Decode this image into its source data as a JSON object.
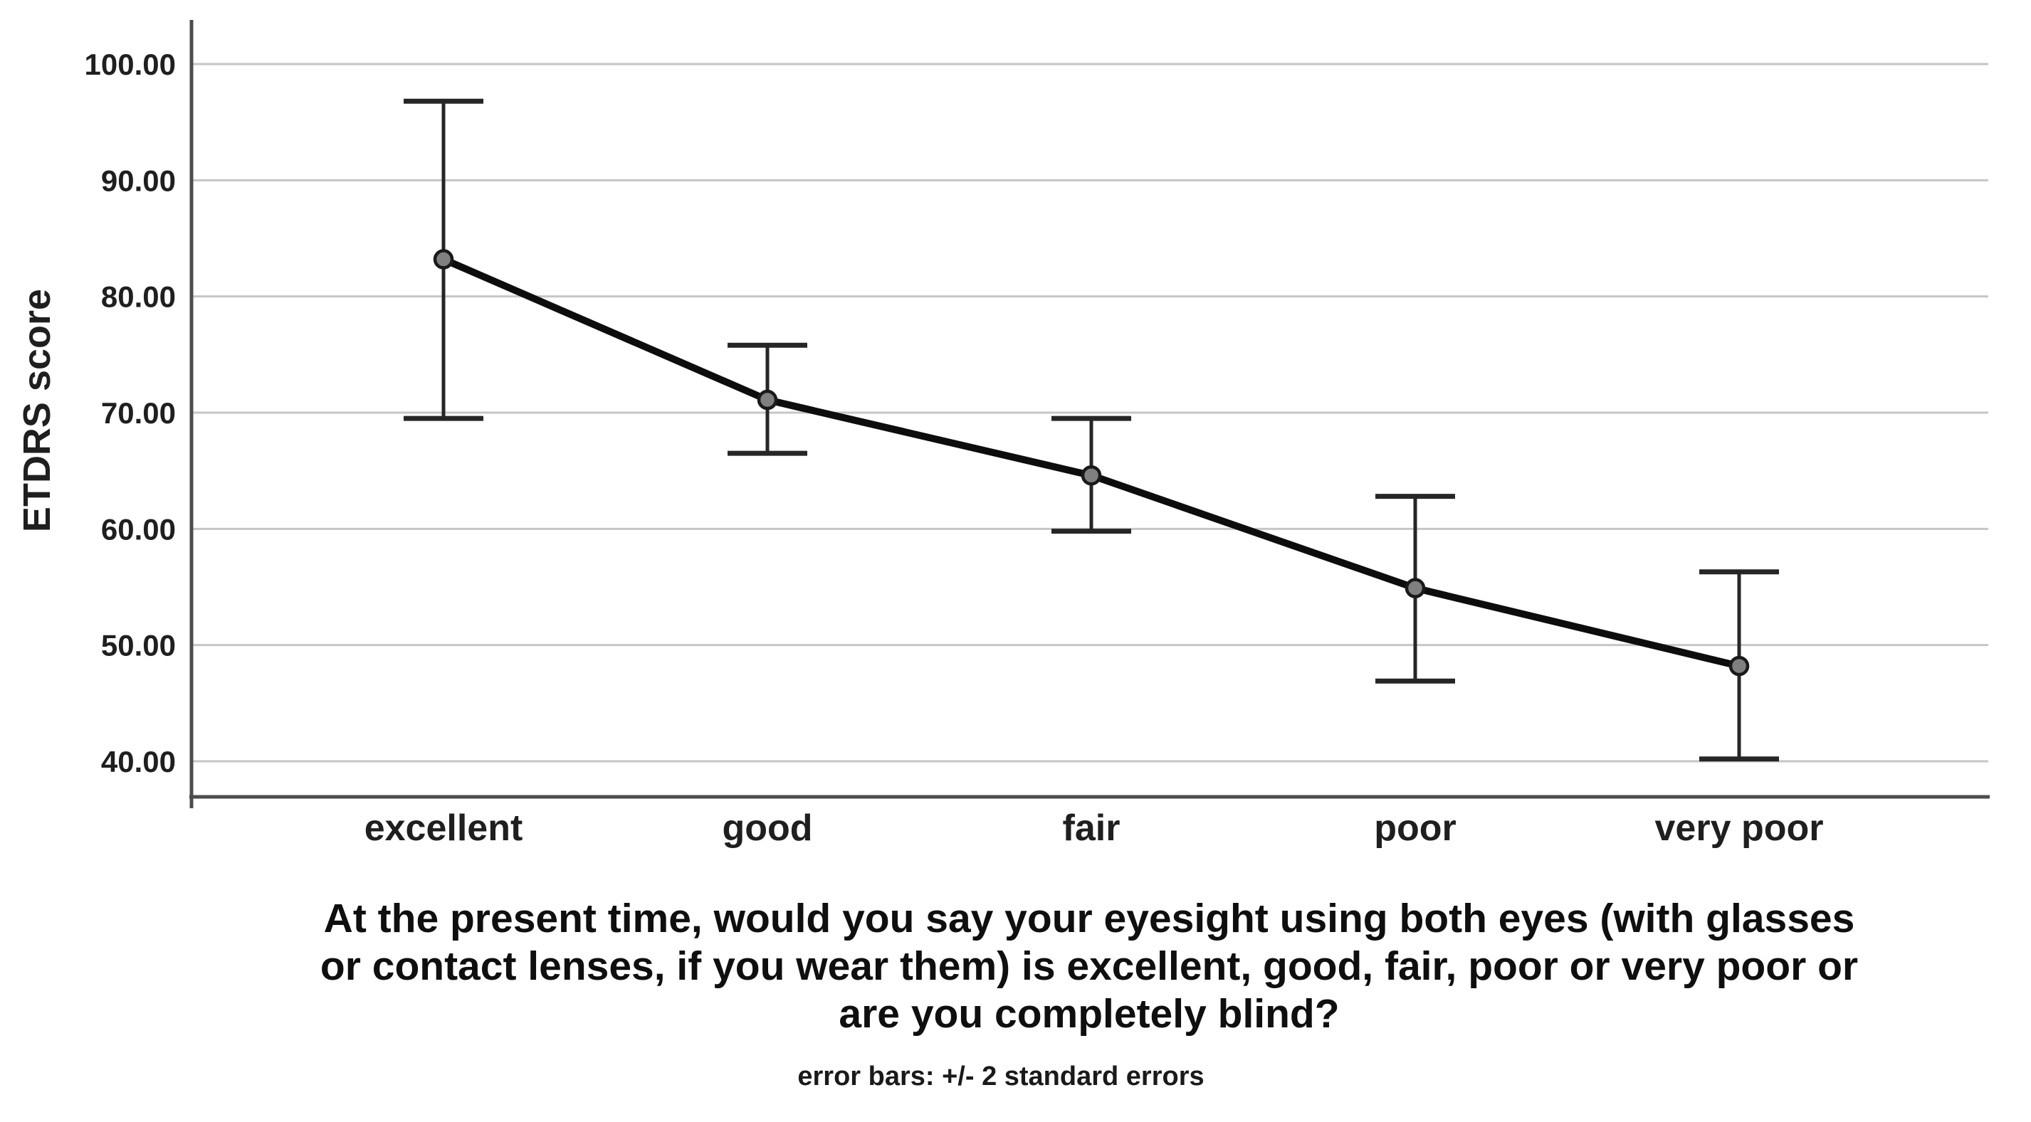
{
  "chart_data": {
    "type": "line",
    "subtype": "error-bar-means-plot",
    "title": "At the present time, would you say your eyesight using both eyes (with glasses or contact lenses, if you wear them) is excellent, good, fair, poor or very poor or are you completely blind?",
    "title_lines": [
      "At the present time, would you say your eyesight using both eyes (with glasses",
      "or contact lenses, if you wear them) is excellent, good, fair, poor or very poor or",
      "are you completely blind?"
    ],
    "footnote": "error bars: +/- 2 standard errors",
    "ylabel": "ETDRS score",
    "xlabel": "",
    "categories": [
      "excellent",
      "good",
      "fair",
      "poor",
      "very poor"
    ],
    "values": [
      83.2,
      71.1,
      64.6,
      54.9,
      48.2
    ],
    "error_upper": [
      96.8,
      75.8,
      69.5,
      62.8,
      56.3
    ],
    "error_lower": [
      69.5,
      66.5,
      59.8,
      46.9,
      40.2
    ],
    "error_bar_definition": "+/- 2 standard errors",
    "y_ticks": [
      {
        "value": 100,
        "label": "100.00"
      },
      {
        "value": 90,
        "label": "90.00"
      },
      {
        "value": 80,
        "label": "80.00"
      },
      {
        "value": 70,
        "label": "70.00"
      },
      {
        "value": 60,
        "label": "60.00"
      },
      {
        "value": 50,
        "label": "50.00"
      },
      {
        "value": 40,
        "label": "40.00"
      }
    ],
    "ylim": [
      36.5,
      103.8
    ],
    "grid": "horizontal",
    "legend": "none",
    "colors": {
      "line": "#0d0d0d",
      "marker_fill": "#808080",
      "marker_stroke": "#1a1a1a",
      "error_bar": "#262626",
      "gridline": "#c6c6c6",
      "axis": "#4d4d4d",
      "text": "#1f1f1f"
    }
  }
}
